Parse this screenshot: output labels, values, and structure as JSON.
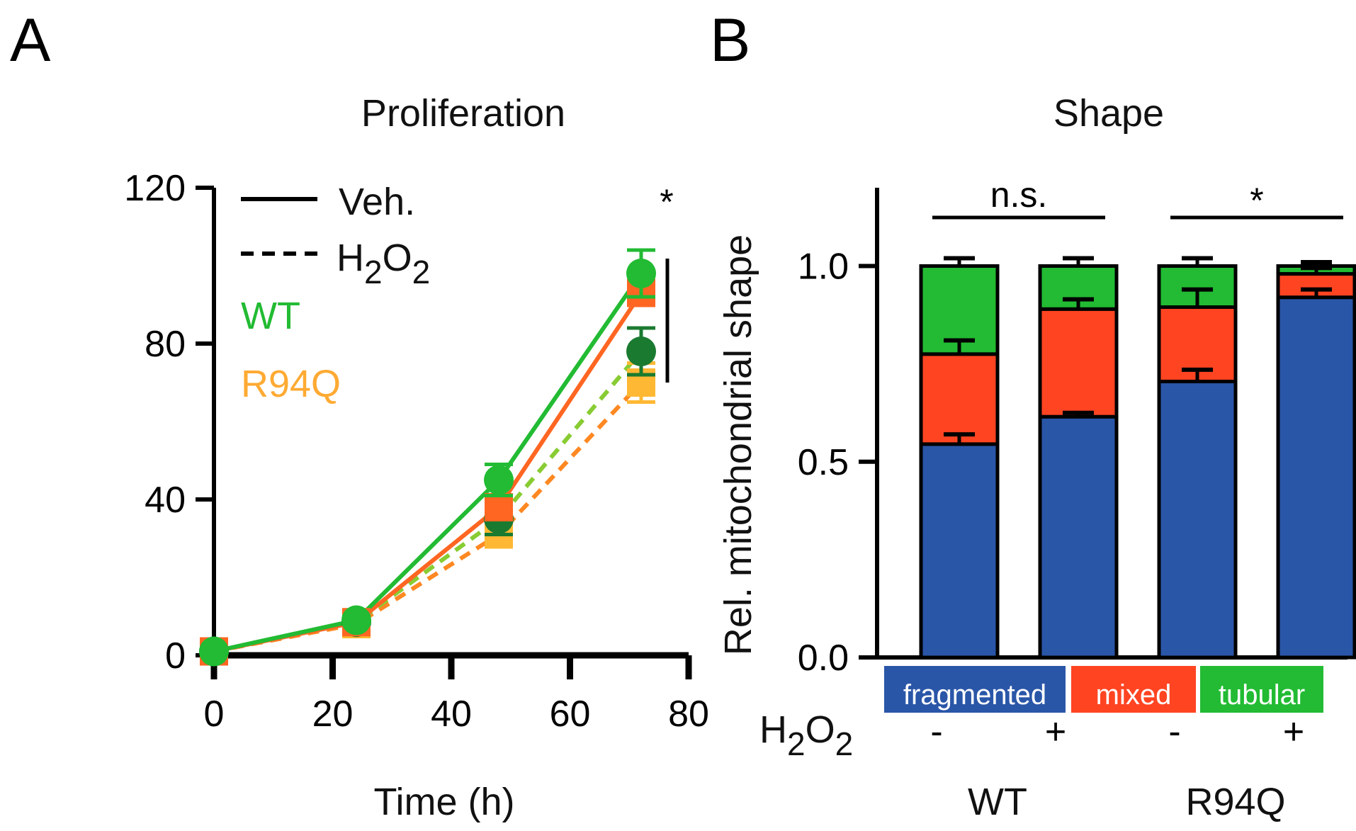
{
  "panel_a_letter": "A",
  "panel_b_letter": "B",
  "chart_data": [
    {
      "type": "line",
      "title": "Proliferation",
      "xlabel": "Time (h)",
      "ylabel": "",
      "xlim": [
        0,
        80
      ],
      "ylim": [
        0,
        120
      ],
      "xticks": [
        "0",
        "20",
        "40",
        "60",
        "80"
      ],
      "yticks": [
        "0",
        "40",
        "80",
        "120"
      ],
      "legend": {
        "line_styles": [
          {
            "label": "Veh.",
            "style": "solid"
          },
          {
            "label": "H",
            "sub1": "2",
            "label_mid": "O",
            "sub2": "2",
            "style": "dashed"
          }
        ],
        "genotypes": [
          {
            "label": "WT",
            "color": "#22bb33"
          },
          {
            "label": "R94Q",
            "color": "#ffaa33"
          }
        ]
      },
      "significance": "*",
      "series": [
        {
          "name": "WT Veh.",
          "color": "#22bb33",
          "marker": "circle",
          "dash": false,
          "x": [
            0,
            24,
            48,
            72
          ],
          "y": [
            1,
            9,
            45,
            98
          ],
          "err": [
            0,
            1,
            4,
            6
          ]
        },
        {
          "name": "R94Q Veh.",
          "color": "#ff6622",
          "marker": "square",
          "dash": false,
          "x": [
            0,
            24,
            48,
            72
          ],
          "y": [
            1,
            8.5,
            38,
            93
          ],
          "err": [
            0,
            1,
            3,
            3
          ]
        },
        {
          "name": "WT H2O2",
          "color": "#1a7a30",
          "lineColor": "#88cc33",
          "marker": "circle",
          "dash": true,
          "x": [
            0,
            24,
            48,
            72
          ],
          "y": [
            1,
            8.5,
            35,
            78
          ],
          "err": [
            0,
            1,
            4,
            6
          ]
        },
        {
          "name": "R94Q H2O2",
          "color": "#ffb833",
          "lineColor": "#ff8822",
          "marker": "square",
          "dash": true,
          "x": [
            0,
            24,
            48,
            72
          ],
          "y": [
            1,
            8,
            31,
            70
          ],
          "err": [
            0,
            1,
            3,
            5
          ]
        }
      ]
    },
    {
      "type": "bar",
      "stacked": true,
      "title": "Shape",
      "ylabel": "Rel. mitochondrial shape",
      "ylim": [
        0,
        1.2
      ],
      "yticks": [
        "0.0",
        "0.5",
        "1.0"
      ],
      "h2o2_label_main": "H",
      "h2o2_sub1": "2",
      "h2o2_label_mid": "O",
      "h2o2_sub2": "2",
      "h2o2_signs": [
        "-",
        "+",
        "-",
        "+"
      ],
      "groups": [
        "WT",
        "R94Q"
      ],
      "category_labels": [
        {
          "label": "fragmented",
          "color": "#2a56a8"
        },
        {
          "label": "mixed",
          "color": "#ff4422"
        },
        {
          "label": "tubular",
          "color": "#22bb33"
        }
      ],
      "series": [
        {
          "name": "fragmented",
          "color": "#2a56a8",
          "values": [
            0.545,
            0.615,
            0.705,
            0.92
          ],
          "err": [
            0.025,
            0.01,
            0.03,
            0.02
          ]
        },
        {
          "name": "mixed",
          "color": "#ff4422",
          "values": [
            0.23,
            0.275,
            0.19,
            0.06
          ],
          "err": [
            0.035,
            0.025,
            0.045,
            0.015
          ]
        },
        {
          "name": "tubular",
          "color": "#22bb33",
          "values": [
            0.225,
            0.11,
            0.105,
            0.02
          ],
          "err": [
            0.02,
            0.02,
            0.02,
            0.01
          ]
        }
      ],
      "comparisons": [
        {
          "bars": [
            0,
            1
          ],
          "label": "n.s."
        },
        {
          "bars": [
            2,
            3
          ],
          "label": "*"
        }
      ]
    }
  ]
}
